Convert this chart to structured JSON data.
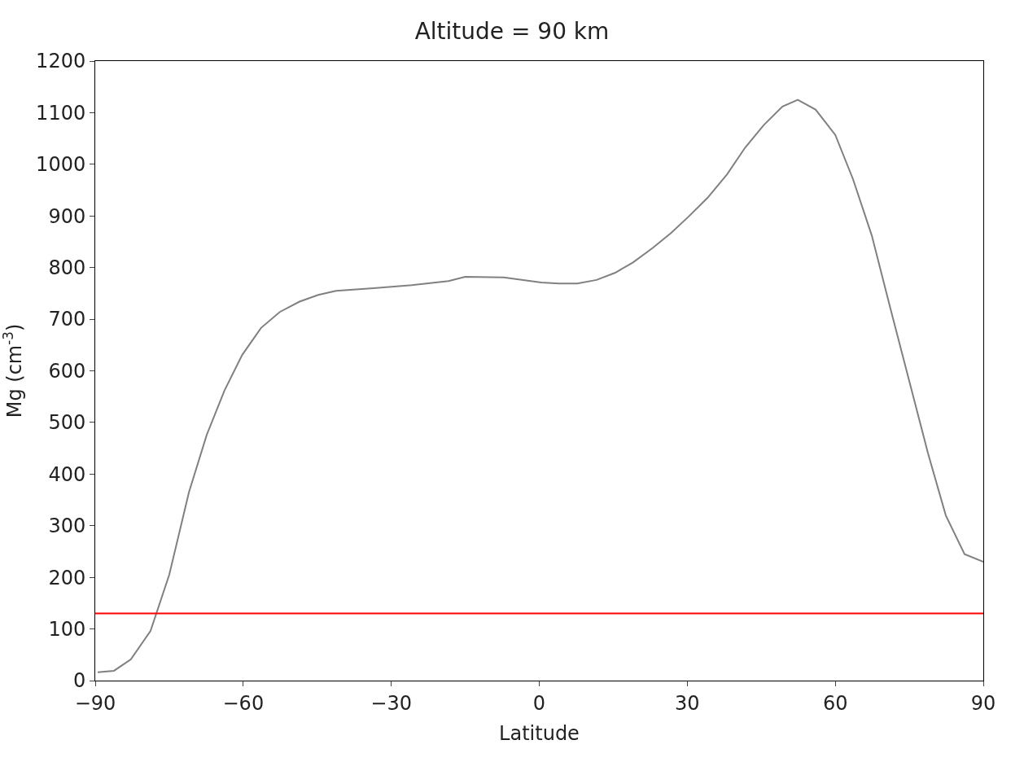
{
  "chart_data": {
    "type": "line",
    "title": "Altitude = 90 km",
    "xlabel": "Latitude",
    "ylabel": "Mg (cm$^{-3}$)",
    "x": [
      -89.5,
      -86.2,
      -82.8,
      -78.8,
      -75,
      -71,
      -67.4,
      -63.8,
      -60.2,
      -56.4,
      -52.6,
      -48.6,
      -44.8,
      -41.2,
      -33.6,
      -25.8,
      -18.4,
      -15,
      -7.2,
      0.4,
      4,
      7.7,
      11.6,
      15.4,
      19,
      23,
      26.7,
      30.3,
      34.1,
      38.1,
      41.7,
      45.5,
      49.3,
      52.4,
      56,
      60,
      63.6,
      67.4,
      71.2,
      75,
      78.8,
      82.4,
      86.2,
      90
    ],
    "series": [
      {
        "color": "#808080",
        "values": [
          16,
          19,
          41,
          96,
          205,
          365,
          476,
          562,
          631,
          683,
          714,
          734,
          747,
          755,
          760,
          766,
          774,
          782,
          781,
          771,
          769,
          769,
          776,
          790,
          810,
          838,
          867,
          899,
          935,
          981,
          1032,
          1076,
          1112,
          1125,
          1106,
          1057,
          971,
          862,
          720,
          580,
          440,
          320,
          245,
          230
        ]
      }
    ],
    "xlim": [
      -90,
      90
    ],
    "xticks": [
      {
        "value": -90,
        "label": "−90"
      },
      {
        "value": -60,
        "label": "−60"
      },
      {
        "value": -30,
        "label": "−30"
      },
      0,
      30,
      60,
      90
    ],
    "ylim": [
      0,
      1200
    ],
    "yticks": [
      0,
      100,
      200,
      300,
      400,
      500,
      600,
      700,
      800,
      900,
      1000,
      1100,
      1200
    ],
    "ref_lines": [
      {
        "axis": "y",
        "value": 130,
        "color": "#ff0000"
      }
    ],
    "legend": false,
    "marker": "none",
    "line_style": "solid"
  }
}
